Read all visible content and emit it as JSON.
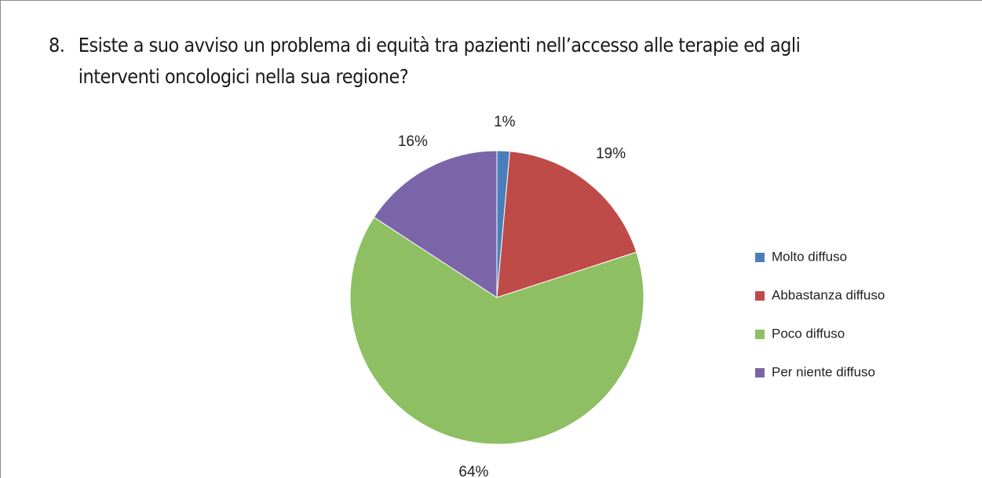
{
  "question": {
    "number": "8.",
    "line1": "Esiste a suo avviso un problema di equità tra pazienti nell’accesso alle terapie ed agli",
    "line2": "interventi oncologici nella sua regione?"
  },
  "chart_data": {
    "type": "pie",
    "categories": [
      "Molto diffuso",
      "Abbastanza diffuso",
      "Poco diffuso",
      "Per niente diffuso"
    ],
    "values": [
      1.4,
      18.6,
      64.2,
      15.8
    ],
    "data_labels": [
      "1%",
      "19%",
      "64%",
      "16%"
    ],
    "colors": [
      "#4a7ebb",
      "#be4b48",
      "#8ebf63",
      "#7b65a9"
    ],
    "legend_position": "right",
    "start_angle": "top, clockwise"
  }
}
